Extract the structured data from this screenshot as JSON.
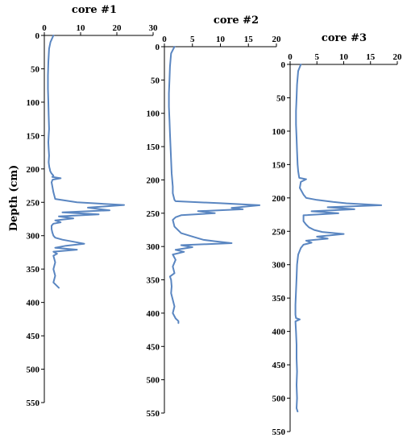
{
  "chart_data": [
    {
      "type": "line",
      "title": "core #1",
      "ylabel": "Depth (cm)",
      "orientation": "vertical-depth",
      "xlim": [
        0,
        30
      ],
      "xticks": [
        "0",
        "10",
        "20",
        "30"
      ],
      "ylim": [
        0,
        550
      ],
      "yticks": [
        "0",
        "50",
        "100",
        "150",
        "200",
        "250",
        "300",
        "350",
        "400",
        "450",
        "500",
        "550"
      ],
      "series": [
        {
          "x": [
            2.5,
            1.7,
            1.3,
            1.1,
            1.0,
            1.0,
            1.1,
            1.2,
            1.3,
            1.2,
            1.1,
            1.2,
            1.3,
            1.2,
            1.3,
            1.4,
            1.5,
            1.6,
            1.8,
            2.0,
            2.2,
            2.5,
            2.2,
            4.5,
            2.3,
            2.0,
            2.5,
            3.0,
            9.0,
            22.0,
            12.0,
            18.0,
            5.0,
            15.0,
            4.0,
            8.0,
            3.0,
            4.5,
            2.5,
            2.0,
            2.0,
            2.2,
            2.5,
            3.0,
            5.0,
            8.0,
            11.0,
            6.0,
            3.0,
            9.0,
            2.5,
            3.5,
            2.5,
            3.0,
            2.5,
            3.0,
            2.5,
            4.0
          ],
          "y": [
            0,
            10,
            20,
            40,
            60,
            80,
            100,
            120,
            140,
            150,
            160,
            170,
            180,
            190,
            195,
            198,
            200,
            203,
            205,
            207,
            208,
            210,
            212,
            214,
            216,
            220,
            235,
            245,
            250,
            254,
            258,
            262,
            265,
            268,
            271,
            274,
            277,
            280,
            282,
            285,
            290,
            295,
            300,
            303,
            306,
            309,
            312,
            315,
            318,
            321,
            324,
            327,
            330,
            340,
            350,
            360,
            370,
            378
          ]
        }
      ]
    },
    {
      "type": "line",
      "title": "core #2",
      "orientation": "vertical-depth",
      "xlim": [
        0,
        20
      ],
      "xticks": [
        "0",
        "5",
        "10",
        "15",
        "20"
      ],
      "ylim": [
        0,
        550
      ],
      "yticks": [
        "0",
        "50",
        "100",
        "150",
        "200",
        "250",
        "300",
        "350",
        "400",
        "450",
        "500",
        "550"
      ],
      "series": [
        {
          "x": [
            1.8,
            1.2,
            1.0,
            0.9,
            0.8,
            0.8,
            0.9,
            1.0,
            1.1,
            1.2,
            1.3,
            1.4,
            1.5,
            1.5,
            1.8,
            2.0,
            10.0,
            17.0,
            12.0,
            14.0,
            6.0,
            9.0,
            3.0,
            2.0,
            1.5,
            1.8,
            3.0,
            5.0,
            7.0,
            9.0,
            12.0,
            3.0,
            5.0,
            2.0,
            3.5,
            1.5,
            2.0,
            1.5,
            1.8,
            1.0,
            1.2,
            1.3,
            1.2,
            1.5,
            1.8,
            1.5,
            2.0,
            2.5,
            2.5
          ],
          "y": [
            0,
            10,
            30,
            50,
            70,
            90,
            110,
            130,
            150,
            170,
            190,
            200,
            210,
            220,
            230,
            232,
            235,
            238,
            242,
            244,
            247,
            250,
            253,
            256,
            260,
            270,
            280,
            285,
            290,
            292,
            295,
            298,
            301,
            305,
            308,
            312,
            320,
            330,
            340,
            345,
            350,
            360,
            370,
            380,
            390,
            400,
            408,
            412,
            415
          ]
        }
      ]
    },
    {
      "type": "line",
      "title": "core #3",
      "orientation": "vertical-depth",
      "xlim": [
        0,
        20
      ],
      "xticks": [
        "0",
        "5",
        "10",
        "15",
        "20"
      ],
      "ylim": [
        0,
        550
      ],
      "yticks": [
        "0",
        "50",
        "100",
        "150",
        "200",
        "250",
        "300",
        "350",
        "400",
        "450",
        "500",
        "550"
      ],
      "series": [
        {
          "x": [
            2.0,
            1.5,
            1.3,
            1.2,
            1.1,
            1.1,
            1.2,
            1.3,
            1.4,
            1.5,
            1.7,
            3.0,
            2.0,
            1.8,
            2.5,
            3.0,
            5.0,
            8.0,
            10.5,
            17.0,
            7.0,
            12.0,
            4.0,
            9.0,
            2.5,
            2.5,
            2.5,
            3.0,
            3.5,
            4.5,
            6.0,
            10.0,
            5.0,
            7.0,
            3.0,
            4.0,
            2.5,
            2.0,
            1.5,
            1.3,
            1.2,
            1.1,
            1.0,
            1.0,
            1.1,
            1.8,
            1.0,
            1.1,
            1.2,
            1.2,
            1.3,
            1.2,
            1.3,
            1.2,
            1.4
          ],
          "y": [
            0,
            10,
            30,
            50,
            70,
            90,
            110,
            130,
            150,
            160,
            170,
            172,
            176,
            185,
            195,
            200,
            203,
            206,
            208,
            211,
            214,
            217,
            220,
            223,
            226,
            230,
            235,
            240,
            244,
            248,
            251,
            254,
            258,
            261,
            264,
            267,
            270,
            275,
            285,
            300,
            320,
            340,
            360,
            375,
            380,
            382,
            385,
            400,
            420,
            440,
            460,
            480,
            500,
            515,
            520
          ]
        }
      ]
    }
  ]
}
